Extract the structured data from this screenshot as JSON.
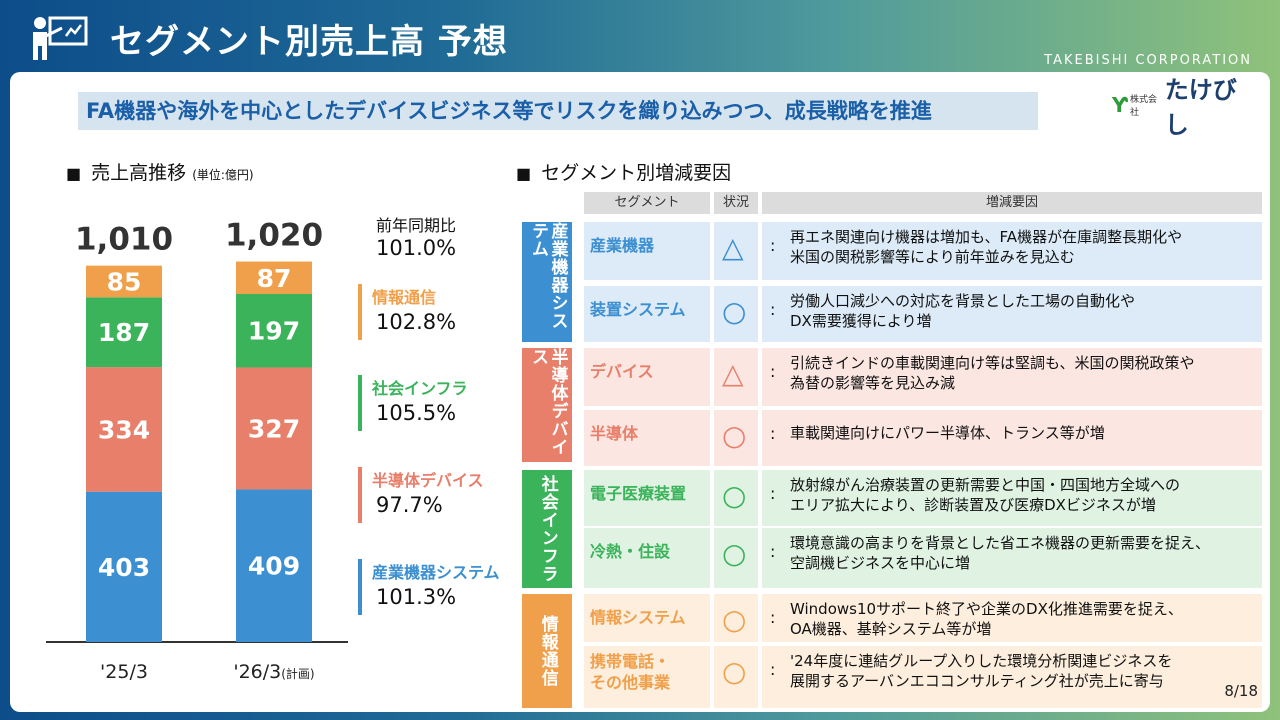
{
  "header": {
    "title": "セグメント別売上高 予想",
    "corporation": "TAKEBISHI CORPORATION",
    "logo_small": "株式会社",
    "logo_name": "たけびし"
  },
  "subtitle": "FA機器や海外を中心としたデバイスビジネス等でリスクを織り込みつつ、成長戦略を推進",
  "left": {
    "heading": "売上高推移",
    "unit": "(単位:億円)",
    "yoy_heading": "前年同期比",
    "yoy_total": "101.0%",
    "segments": [
      {
        "name": "情報通信",
        "rate": "102.8%",
        "color": "#f0a04a"
      },
      {
        "name": "社会インフラ",
        "rate": "105.5%",
        "color": "#3bb35a"
      },
      {
        "name": "半導体デバイス",
        "rate": "97.7%",
        "color": "#e87f6a"
      },
      {
        "name": "産業機器システム",
        "rate": "101.3%",
        "color": "#3c8fd0"
      }
    ]
  },
  "chart_data": {
    "type": "bar",
    "stacked": true,
    "categories": [
      "'25/3",
      "'26/3"
    ],
    "category_notes": [
      "",
      "(計画)"
    ],
    "totals": [
      "1,010",
      "1,020"
    ],
    "series": [
      {
        "values": [
          403,
          409
        ],
        "color": "#3c8fd0"
      },
      {
        "values": [
          334,
          327
        ],
        "color": "#e87f6a"
      },
      {
        "values": [
          187,
          197
        ],
        "color": "#3bb35a"
      },
      {
        "values": [
          85,
          87
        ],
        "color": "#f0a04a"
      }
    ]
  },
  "right": {
    "heading": "セグメント別増減要因",
    "columns": [
      "セグメント",
      "状況",
      "増減要因"
    ],
    "groups": [
      {
        "label": "産業機器システム",
        "color": "#3c8fd0",
        "bg": "#dcebf7",
        "rows": [
          {
            "segment": "産業機器",
            "status": "△",
            "reason": [
              "再エネ関連向け機器は増加も、FA機器が在庫調整長期化や",
              "米国の関税影響等により前年並みを見込む"
            ]
          },
          {
            "segment": "装置システム",
            "status": "○",
            "reason": [
              "労働人口減少への対応を背景とした工場の自動化や",
              "DX需要獲得により増"
            ]
          }
        ]
      },
      {
        "label": "半導体デバイス",
        "color": "#e87f6a",
        "bg": "#fbe6e1",
        "rows": [
          {
            "segment": "デバイス",
            "status": "△",
            "reason": [
              "引続きインドの車載関連向け等は堅調も、米国の関税政策や",
              "為替の影響等を見込み減"
            ]
          },
          {
            "segment": "半導体",
            "status": "○",
            "reason": [
              "車載関連向けにパワー半導体、トランス等が増"
            ]
          }
        ]
      },
      {
        "label": "社会インフラ",
        "color": "#3bb35a",
        "bg": "#e0f3e3",
        "rows": [
          {
            "segment": "電子医療装置",
            "status": "○",
            "reason": [
              "放射線がん治療装置の更新需要と中国・四国地方全域への",
              "エリア拡大により、診断装置及び医療DXビジネスが増"
            ]
          },
          {
            "segment": "冷熱・住設",
            "status": "○",
            "reason": [
              "環境意識の高まりを背景とした省エネ機器の更新需要を捉え、",
              "空調機ビジネスを中心に増"
            ]
          }
        ]
      },
      {
        "label": "情報通信",
        "color": "#f0a04a",
        "bg": "#fdeedd",
        "rows": [
          {
            "segment": "情報システム",
            "status": "○",
            "reason": [
              "Windows10サポート終了や企業のDX化推進需要を捉え、",
              "OA機器、基幹システム等が増"
            ]
          },
          {
            "segment": [
              "携帯電話・",
              "その他事業"
            ],
            "status": "○",
            "reason": [
              "'24年度に連結グループ入りした環境分析関連ビジネスを",
              "展開するアーバンエココンサルティング社が売上に寄与"
            ]
          }
        ]
      }
    ]
  },
  "page_number": "8/18"
}
